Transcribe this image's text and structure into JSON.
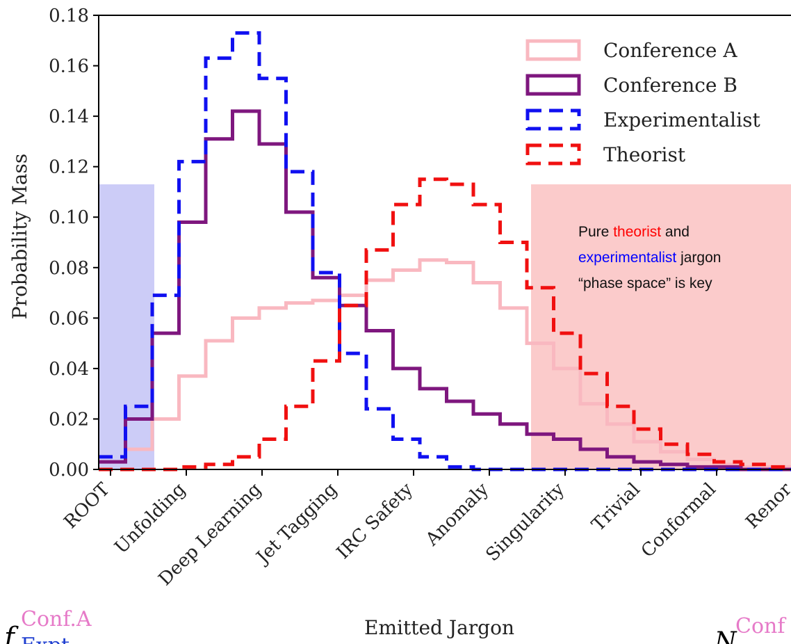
{
  "chart_data": {
    "type": "step-histogram",
    "xlabel": "Emitted Jargon",
    "ylabel": "Probability Mass",
    "ylim": [
      0,
      0.18
    ],
    "yticks": [
      0.0,
      0.02,
      0.04,
      0.06,
      0.08,
      0.1,
      0.12,
      0.14,
      0.16,
      0.18
    ],
    "ytick_labels": [
      "0.00",
      "0.02",
      "0.04",
      "0.06",
      "0.08",
      "0.10",
      "0.12",
      "0.14",
      "0.16",
      "0.18"
    ],
    "categories": [
      "ROOT",
      "Unfolding",
      "Deep Learning",
      "Jet Tagging",
      "IRC Safety",
      "Anomaly",
      "Singularity",
      "Trivial",
      "Conformal",
      "Renor"
    ],
    "legend_position": "top-right",
    "series": [
      {
        "name": "Conference A",
        "color": "#f9b8c0",
        "style": "solid",
        "values": [
          0.003,
          0.008,
          0.02,
          0.037,
          0.051,
          0.06,
          0.064,
          0.066,
          0.067,
          0.069,
          0.075,
          0.079,
          0.083,
          0.082,
          0.074,
          0.064,
          0.05,
          0.04,
          0.026,
          0.018,
          0.011,
          0.007,
          0.004,
          0.002,
          0.001,
          0.001
        ]
      },
      {
        "name": "Conference B",
        "color": "#7e177e",
        "style": "solid",
        "values": [
          0.003,
          0.02,
          0.054,
          0.098,
          0.131,
          0.142,
          0.129,
          0.102,
          0.076,
          0.065,
          0.055,
          0.04,
          0.032,
          0.027,
          0.022,
          0.018,
          0.014,
          0.012,
          0.008,
          0.005,
          0.003,
          0.002,
          0.001,
          0.001,
          0.0,
          0.0
        ]
      },
      {
        "name": "Experimentalist",
        "color": "#1010f0",
        "style": "dashed",
        "values": [
          0.005,
          0.025,
          0.069,
          0.122,
          0.163,
          0.173,
          0.155,
          0.118,
          0.078,
          0.046,
          0.024,
          0.012,
          0.005,
          0.001,
          0.0,
          0.0,
          0.0,
          0.0,
          0.0,
          0.0,
          0.0,
          0.0,
          0.0,
          0.0,
          0.0,
          0.0
        ]
      },
      {
        "name": "Theorist",
        "color": "#f01010",
        "style": "dashed",
        "values": [
          0.0,
          0.0,
          0.0,
          0.001,
          0.002,
          0.005,
          0.012,
          0.025,
          0.043,
          0.065,
          0.087,
          0.105,
          0.115,
          0.113,
          0.105,
          0.09,
          0.072,
          0.054,
          0.038,
          0.025,
          0.016,
          0.01,
          0.006,
          0.003,
          0.002,
          0.001
        ]
      }
    ],
    "bins": 26
  },
  "annotation": {
    "pre": "Pure ",
    "theorist": "theorist",
    "mid": " and",
    "experimentalist": "experimentalist",
    "post": " jargon",
    "line3": "“phase space” is key",
    "theorist_color": "#ff0000",
    "experimentalist_color": "#0000ff"
  },
  "fragments": {
    "left_f": "f",
    "left_sup": "Conf.A",
    "left_sub": "Expt",
    "right_N": "N",
    "right_sup": "Conf",
    "sup_color": "#e67ac8",
    "sub_color": "#1f3fd0"
  },
  "shading": {
    "left_color": "#c9c9f7",
    "right_color": "#fbc8c8"
  }
}
